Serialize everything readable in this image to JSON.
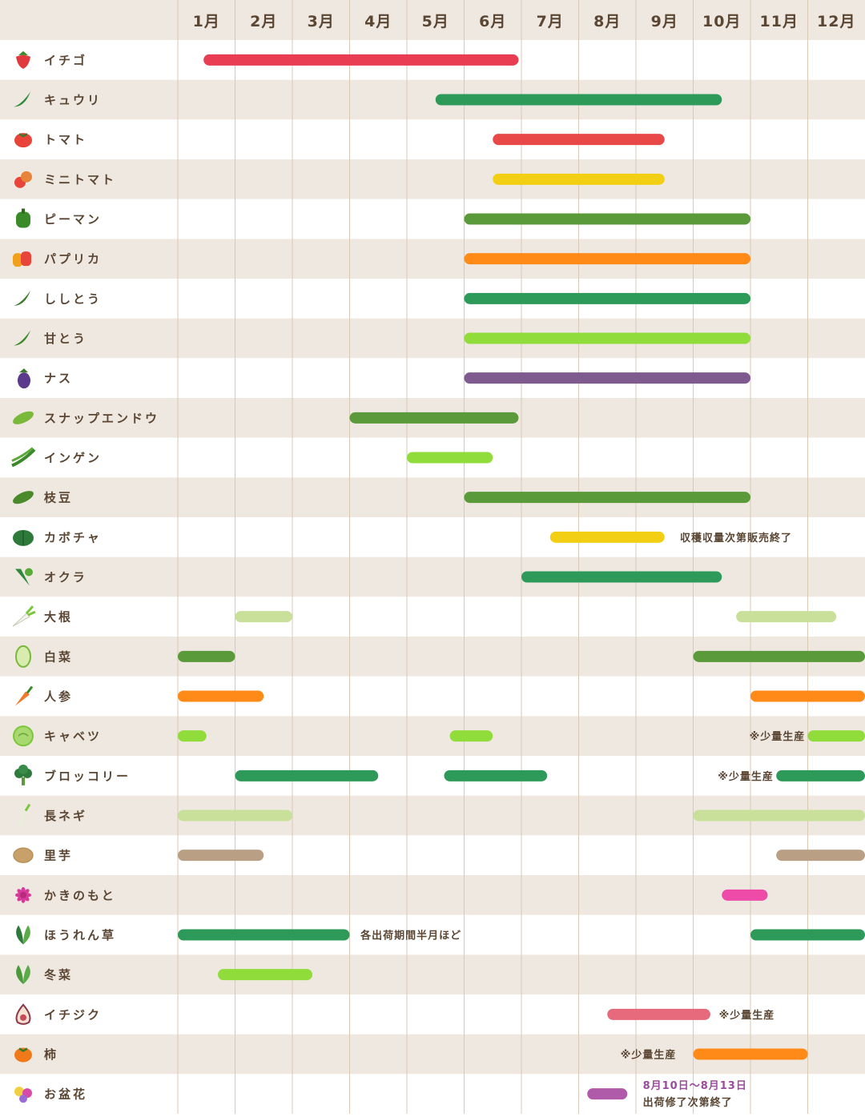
{
  "chart_data": {
    "type": "gantt",
    "months": [
      "1月",
      "2月",
      "3月",
      "4月",
      "5月",
      "6月",
      "7月",
      "8月",
      "9月",
      "10月",
      "11月",
      "12月"
    ],
    "colors": {
      "header_bg": "#efe8e0",
      "stripe": "#efe8e0",
      "grid": "#d9c8b4",
      "text": "#5a4633",
      "purple_text": "#9a4b9c"
    },
    "rows": [
      {
        "name": "イチゴ",
        "icon": "strawberry-icon",
        "icon_color": "#e03a3e",
        "bars": [
          {
            "start": 1.45,
            "end": 6.95,
            "color": "#e83d52"
          }
        ]
      },
      {
        "name": "キュウリ",
        "icon": "cucumber-icon",
        "icon_color": "#2e8a3a",
        "bars": [
          {
            "start": 5.5,
            "end": 10.5,
            "color": "#2e9a5a"
          }
        ]
      },
      {
        "name": "トマト",
        "icon": "tomato-icon",
        "icon_color": "#e8443a",
        "bars": [
          {
            "start": 6.5,
            "end": 9.5,
            "color": "#e84848"
          }
        ]
      },
      {
        "name": "ミニトマト",
        "icon": "mini-tomato-icon",
        "icon_color": "#e8843a",
        "bars": [
          {
            "start": 6.5,
            "end": 9.5,
            "color": "#f2cf12"
          }
        ]
      },
      {
        "name": "ピーマン",
        "icon": "green-pepper-icon",
        "icon_color": "#3a8a2a",
        "bars": [
          {
            "start": 6.0,
            "end": 11.0,
            "color": "#5a9a3a"
          }
        ]
      },
      {
        "name": "パプリカ",
        "icon": "paprika-icon",
        "icon_color": "#f0801a",
        "bars": [
          {
            "start": 6.0,
            "end": 11.0,
            "color": "#ff8a18"
          }
        ]
      },
      {
        "name": "ししとう",
        "icon": "shishito-icon",
        "icon_color": "#3a7a2a",
        "bars": [
          {
            "start": 6.0,
            "end": 11.0,
            "color": "#2e9a5a"
          }
        ]
      },
      {
        "name": "甘とう",
        "icon": "amato-pepper-icon",
        "icon_color": "#3a8a2a",
        "bars": [
          {
            "start": 6.0,
            "end": 11.0,
            "color": "#8fdc3a"
          }
        ]
      },
      {
        "name": "ナス",
        "icon": "eggplant-icon",
        "icon_color": "#5a3a8a",
        "bars": [
          {
            "start": 6.0,
            "end": 11.0,
            "color": "#7e5a8e"
          }
        ]
      },
      {
        "name": "スナップエンドウ",
        "icon": "snap-pea-icon",
        "icon_color": "#7ab83a",
        "bars": [
          {
            "start": 4.0,
            "end": 6.95,
            "color": "#5a9a3a"
          }
        ]
      },
      {
        "name": "インゲン",
        "icon": "green-bean-icon",
        "icon_color": "#3a8a2a",
        "bars": [
          {
            "start": 5.0,
            "end": 6.5,
            "color": "#8fdc3a"
          }
        ]
      },
      {
        "name": "枝豆",
        "icon": "edamame-icon",
        "icon_color": "#4a8a2a",
        "bars": [
          {
            "start": 6.0,
            "end": 11.0,
            "color": "#5a9a3a"
          }
        ]
      },
      {
        "name": "カボチャ",
        "icon": "pumpkin-icon",
        "icon_color": "#2e7a3a",
        "bars": [
          {
            "start": 7.5,
            "end": 9.5,
            "color": "#f2cf12"
          }
        ],
        "notes": [
          {
            "text": "収穫収量次第販売終了",
            "month": 9.77,
            "style": "normal"
          }
        ]
      },
      {
        "name": "オクラ",
        "icon": "okra-icon",
        "icon_color": "#2e8a3a",
        "bars": [
          {
            "start": 7.0,
            "end": 10.5,
            "color": "#2e9a5a"
          }
        ]
      },
      {
        "name": "大根",
        "icon": "daikon-icon",
        "icon_color": "#7ac83a",
        "bars": [
          {
            "start": 2.0,
            "end": 3.0,
            "color": "#c8e09a"
          },
          {
            "start": 10.75,
            "end": 12.5,
            "color": "#c8e09a"
          }
        ]
      },
      {
        "name": "白菜",
        "icon": "napa-cabbage-icon",
        "icon_color": "#7ab83a",
        "bars": [
          {
            "start": 1.0,
            "end": 2.0,
            "color": "#5a9a3a"
          },
          {
            "start": 10.0,
            "end": 13.0,
            "color": "#5a9a3a"
          }
        ]
      },
      {
        "name": "人参",
        "icon": "carrot-icon",
        "icon_color": "#f07a2a",
        "bars": [
          {
            "start": 1.0,
            "end": 2.5,
            "color": "#ff8a18"
          },
          {
            "start": 11.0,
            "end": 13.0,
            "color": "#ff8a18"
          }
        ]
      },
      {
        "name": "キャベツ",
        "icon": "cabbage-icon",
        "icon_color": "#7ac83a",
        "bars": [
          {
            "start": 1.0,
            "end": 1.5,
            "color": "#8fdc3a"
          },
          {
            "start": 5.75,
            "end": 6.5,
            "color": "#8fdc3a"
          },
          {
            "start": 12.0,
            "end": 13.0,
            "color": "#8fdc3a"
          }
        ],
        "notes": [
          {
            "text": "※少量生産",
            "month": 10.98,
            "style": "normal"
          }
        ]
      },
      {
        "name": "ブロッコリー",
        "icon": "broccoli-icon",
        "icon_color": "#2e7a3a",
        "bars": [
          {
            "start": 2.0,
            "end": 4.5,
            "color": "#2e9a5a"
          },
          {
            "start": 5.65,
            "end": 7.45,
            "color": "#2e9a5a"
          },
          {
            "start": 11.45,
            "end": 13.0,
            "color": "#2e9a5a"
          }
        ],
        "notes": [
          {
            "text": "※少量生産",
            "month": 10.43,
            "style": "normal"
          }
        ]
      },
      {
        "name": "長ネギ",
        "icon": "leek-icon",
        "icon_color": "#7ac83a",
        "bars": [
          {
            "start": 1.0,
            "end": 3.0,
            "color": "#c8e09a"
          },
          {
            "start": 10.0,
            "end": 13.0,
            "color": "#c8e09a"
          }
        ]
      },
      {
        "name": "里芋",
        "icon": "taro-icon",
        "icon_color": "#b8925a",
        "bars": [
          {
            "start": 1.0,
            "end": 2.5,
            "color": "#b9a084"
          },
          {
            "start": 11.45,
            "end": 13.0,
            "color": "#b9a084"
          }
        ]
      },
      {
        "name": "かきのもと",
        "icon": "chrysanthemum-icon",
        "icon_color": "#d83a9a",
        "bars": [
          {
            "start": 10.5,
            "end": 11.3,
            "color": "#ee4aa8"
          }
        ]
      },
      {
        "name": "ほうれん草",
        "icon": "spinach-icon",
        "icon_color": "#2e7a3a",
        "bars": [
          {
            "start": 1.0,
            "end": 4.0,
            "color": "#2e9a5a"
          },
          {
            "start": 11.0,
            "end": 13.0,
            "color": "#2e9a5a"
          }
        ],
        "notes": [
          {
            "text": "各出荷期間半月ほど",
            "month": 4.19,
            "style": "normal"
          }
        ]
      },
      {
        "name": "冬菜",
        "icon": "winter-greens-icon",
        "icon_color": "#4a9a3a",
        "bars": [
          {
            "start": 1.7,
            "end": 3.35,
            "color": "#8fdc3a"
          }
        ]
      },
      {
        "name": "イチジク",
        "icon": "fig-icon",
        "icon_color": "#8a3a4a",
        "bars": [
          {
            "start": 8.5,
            "end": 10.3,
            "color": "#e66a7c"
          }
        ],
        "notes": [
          {
            "text": "※少量生産",
            "month": 10.45,
            "style": "normal"
          }
        ]
      },
      {
        "name": "柿",
        "icon": "persimmon-icon",
        "icon_color": "#f07a1a",
        "bars": [
          {
            "start": 10.0,
            "end": 12.0,
            "color": "#ff8a18"
          }
        ],
        "notes": [
          {
            "text": "※少量生産",
            "month": 8.73,
            "style": "normal"
          }
        ]
      },
      {
        "name": "お盆花",
        "icon": "bon-flowers-icon",
        "icon_color": "#d84aa8",
        "bars": [
          {
            "start": 8.15,
            "end": 8.85,
            "color": "#b05aaa"
          }
        ],
        "notes": [
          {
            "text": "8月10日〜8月13日",
            "month": 9.12,
            "style": "purple",
            "line": 0
          },
          {
            "text": "出荷修了次第終了",
            "month": 9.12,
            "style": "normal",
            "line": 1
          }
        ]
      }
    ]
  }
}
